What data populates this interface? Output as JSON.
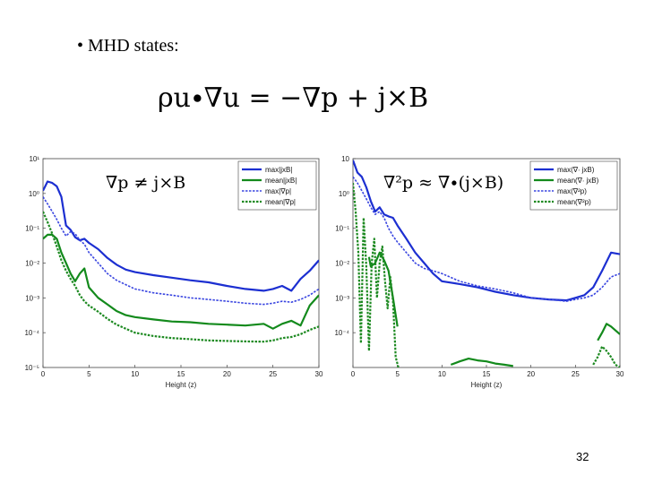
{
  "slide": {
    "bullet": "• MHD states:",
    "equation": "ρu∙∇u = −∇p + j×B",
    "page_number": "32"
  },
  "chart_data": [
    {
      "type": "line",
      "yscale": "log",
      "xlabel": "Height (z)",
      "xlim": [
        0,
        30
      ],
      "ylim": [
        1e-05,
        10
      ],
      "xticks": [
        0,
        5,
        10,
        15,
        20,
        25,
        30
      ],
      "yticks": [
        {
          "v": 10,
          "label": "10¹"
        },
        {
          "v": 1,
          "label": "10⁰"
        },
        {
          "v": 0.1,
          "label": "10⁻¹"
        },
        {
          "v": 0.01,
          "label": "10⁻²"
        },
        {
          "v": 0.001,
          "label": "10⁻³"
        },
        {
          "v": 0.0001,
          "label": "10⁻⁴"
        },
        {
          "v": 1e-05,
          "label": "10⁻⁵"
        }
      ],
      "annotation": "∇p ≠ j×B",
      "legend_position": "top-right",
      "series": [
        {
          "name": "max|jxB|",
          "color": "#1c2fd1",
          "style": "solid",
          "width": 2.2,
          "x": [
            0,
            0.5,
            1,
            1.5,
            2,
            2.5,
            3,
            3.5,
            4,
            4.5,
            5,
            6,
            7,
            8,
            9,
            10,
            12,
            14,
            16,
            18,
            20,
            22,
            24,
            25,
            26,
            27,
            28,
            29,
            30
          ],
          "y": [
            1.2,
            2.2,
            2.0,
            1.6,
            0.8,
            0.12,
            0.09,
            0.055,
            0.045,
            0.05,
            0.038,
            0.025,
            0.014,
            0.009,
            0.0065,
            0.0055,
            0.0045,
            0.0038,
            0.0032,
            0.0028,
            0.0022,
            0.0018,
            0.0016,
            0.0018,
            0.0022,
            0.0016,
            0.0035,
            0.006,
            0.012
          ]
        },
        {
          "name": "mean|jxB|",
          "color": "#138a1c",
          "style": "solid",
          "width": 2.2,
          "x": [
            0,
            0.5,
            1,
            1.5,
            2,
            2.5,
            3,
            3.5,
            4,
            4.5,
            5,
            6,
            7,
            8,
            9,
            10,
            12,
            14,
            16,
            18,
            20,
            22,
            24,
            25,
            26,
            27,
            28,
            29,
            30
          ],
          "y": [
            0.05,
            0.065,
            0.065,
            0.05,
            0.02,
            0.01,
            0.005,
            0.003,
            0.005,
            0.007,
            0.002,
            0.001,
            0.00065,
            0.00042,
            0.00032,
            0.00028,
            0.00024,
            0.00021,
            0.0002,
            0.00018,
            0.00017,
            0.00016,
            0.00018,
            0.00013,
            0.00018,
            0.00022,
            0.00016,
            0.0006,
            0.0012
          ]
        },
        {
          "name": "max|∇p|",
          "color": "#3a46e0",
          "style": "dash",
          "width": 1.6,
          "x": [
            0,
            0.5,
            1,
            1.5,
            2,
            2.5,
            3,
            3.5,
            4,
            4.5,
            5,
            6,
            7,
            8,
            9,
            10,
            12,
            14,
            16,
            18,
            20,
            22,
            24,
            25,
            26,
            27,
            28,
            29,
            30
          ],
          "y": [
            0.8,
            0.5,
            0.3,
            0.18,
            0.1,
            0.06,
            0.08,
            0.07,
            0.045,
            0.035,
            0.02,
            0.01,
            0.005,
            0.0032,
            0.0024,
            0.0018,
            0.0014,
            0.0012,
            0.001,
            0.0009,
            0.0008,
            0.0007,
            0.00065,
            0.0007,
            0.0008,
            0.00075,
            0.0009,
            0.0012,
            0.0018
          ]
        },
        {
          "name": "mean|∇p|",
          "color": "#1e8a22",
          "style": "dash",
          "width": 2.2,
          "x": [
            0,
            0.5,
            1,
            1.5,
            2,
            2.5,
            3,
            3.5,
            4,
            4.5,
            5,
            6,
            7,
            8,
            9,
            10,
            12,
            14,
            16,
            18,
            20,
            22,
            24,
            25,
            26,
            27,
            28,
            29,
            30
          ],
          "y": [
            0.3,
            0.15,
            0.07,
            0.03,
            0.012,
            0.006,
            0.0035,
            0.0022,
            0.0012,
            0.0008,
            0.0006,
            0.0004,
            0.00025,
            0.00017,
            0.00013,
            0.0001,
            8e-05,
            7e-05,
            6.5e-05,
            6e-05,
            5.8e-05,
            5.6e-05,
            5.5e-05,
            6e-05,
            7e-05,
            7.5e-05,
            9e-05,
            0.00012,
            0.00015
          ]
        }
      ]
    },
    {
      "type": "line",
      "yscale": "log",
      "xlabel": "Height (z)",
      "xlim": [
        0,
        30
      ],
      "ylim": [
        1e-05,
        10
      ],
      "xticks": [
        0,
        5,
        10,
        15,
        20,
        25,
        30
      ],
      "yticks": [
        {
          "v": 10,
          "label": "10"
        },
        {
          "v": 1,
          "label": "10⁰"
        },
        {
          "v": 0.1,
          "label": "10⁻¹"
        },
        {
          "v": 0.01,
          "label": "10⁻²"
        },
        {
          "v": 0.001,
          "label": "10⁻³"
        },
        {
          "v": 0.0001,
          "label": "10⁻⁴"
        }
      ],
      "annotation": "∇²p ≈ ∇∙(j×B)",
      "legend_position": "top-right",
      "series": [
        {
          "name": "max(∇∙ jxB)",
          "color": "#1c2fd1",
          "style": "solid",
          "width": 2.2,
          "x": [
            0,
            0.5,
            1,
            1.5,
            2,
            2.5,
            3,
            3.5,
            4,
            4.5,
            5,
            6,
            7,
            8,
            9,
            10,
            12,
            14,
            16,
            18,
            20,
            22,
            24,
            25,
            26,
            27,
            28,
            29,
            30
          ],
          "y": [
            9,
            4,
            3,
            1.5,
            0.6,
            0.3,
            0.4,
            0.25,
            0.22,
            0.2,
            0.12,
            0.05,
            0.02,
            0.01,
            0.005,
            0.003,
            0.0025,
            0.002,
            0.0015,
            0.0012,
            0.001,
            0.0009,
            0.00085,
            0.001,
            0.0012,
            0.002,
            0.006,
            0.02,
            0.018
          ]
        },
        {
          "name": "mean(∇∙ jxB)",
          "color": "#138a1c",
          "style": "solid",
          "width": 2.2,
          "x": [
            1.8,
            2,
            2.5,
            3,
            3.5,
            4,
            4.5,
            5,
            null,
            11,
            12,
            13,
            14,
            15,
            16,
            17,
            18,
            null,
            27.5,
            28,
            28.5,
            29,
            30
          ],
          "y": [
            0.015,
            0.008,
            0.01,
            0.02,
            0.012,
            0.006,
            0.001,
            0.00015,
            null,
            1.2e-05,
            1.5e-05,
            1.8e-05,
            1.6e-05,
            1.5e-05,
            1.3e-05,
            1.2e-05,
            1.1e-05,
            null,
            6e-05,
            0.0001,
            0.00018,
            0.00015,
            9e-05
          ]
        },
        {
          "name": "max(∇²p)",
          "color": "#3a46e0",
          "style": "dash",
          "width": 1.6,
          "x": [
            0,
            0.5,
            1,
            1.5,
            2,
            2.5,
            3,
            3.5,
            4,
            4.5,
            5,
            6,
            7,
            8,
            9,
            10,
            12,
            14,
            16,
            18,
            20,
            22,
            24,
            25,
            26,
            27,
            28,
            29,
            30
          ],
          "y": [
            3,
            2,
            1.2,
            0.7,
            0.4,
            0.25,
            0.3,
            0.2,
            0.1,
            0.06,
            0.04,
            0.02,
            0.01,
            0.007,
            0.006,
            0.005,
            0.003,
            0.0022,
            0.0018,
            0.0014,
            0.001,
            0.0009,
            0.0008,
            0.0009,
            0.001,
            0.0012,
            0.002,
            0.004,
            0.005
          ]
        },
        {
          "name": "mean(∇²p)",
          "color": "#1e8a22",
          "style": "dash",
          "width": 2.2,
          "x": [
            0,
            0.3,
            0.6,
            0.9,
            1.2,
            1.5,
            1.8,
            2.1,
            2.4,
            2.7,
            3,
            3.3,
            3.6,
            3.9,
            4.2,
            4.5,
            4.8,
            5.1,
            null,
            27,
            27.5,
            28,
            28.5,
            29,
            29.5,
            30
          ],
          "y": [
            2,
            0.3,
            0.02,
            5e-05,
            0.2,
            0.008,
            3e-05,
            0.01,
            0.05,
            0.001,
            0.01,
            0.03,
            0.003,
            0.0005,
            0.004,
            0.0008,
            2e-05,
            1e-05,
            null,
            1.2e-05,
            2e-05,
            4e-05,
            3e-05,
            2e-05,
            1.2e-05,
            1e-05
          ]
        }
      ]
    }
  ]
}
